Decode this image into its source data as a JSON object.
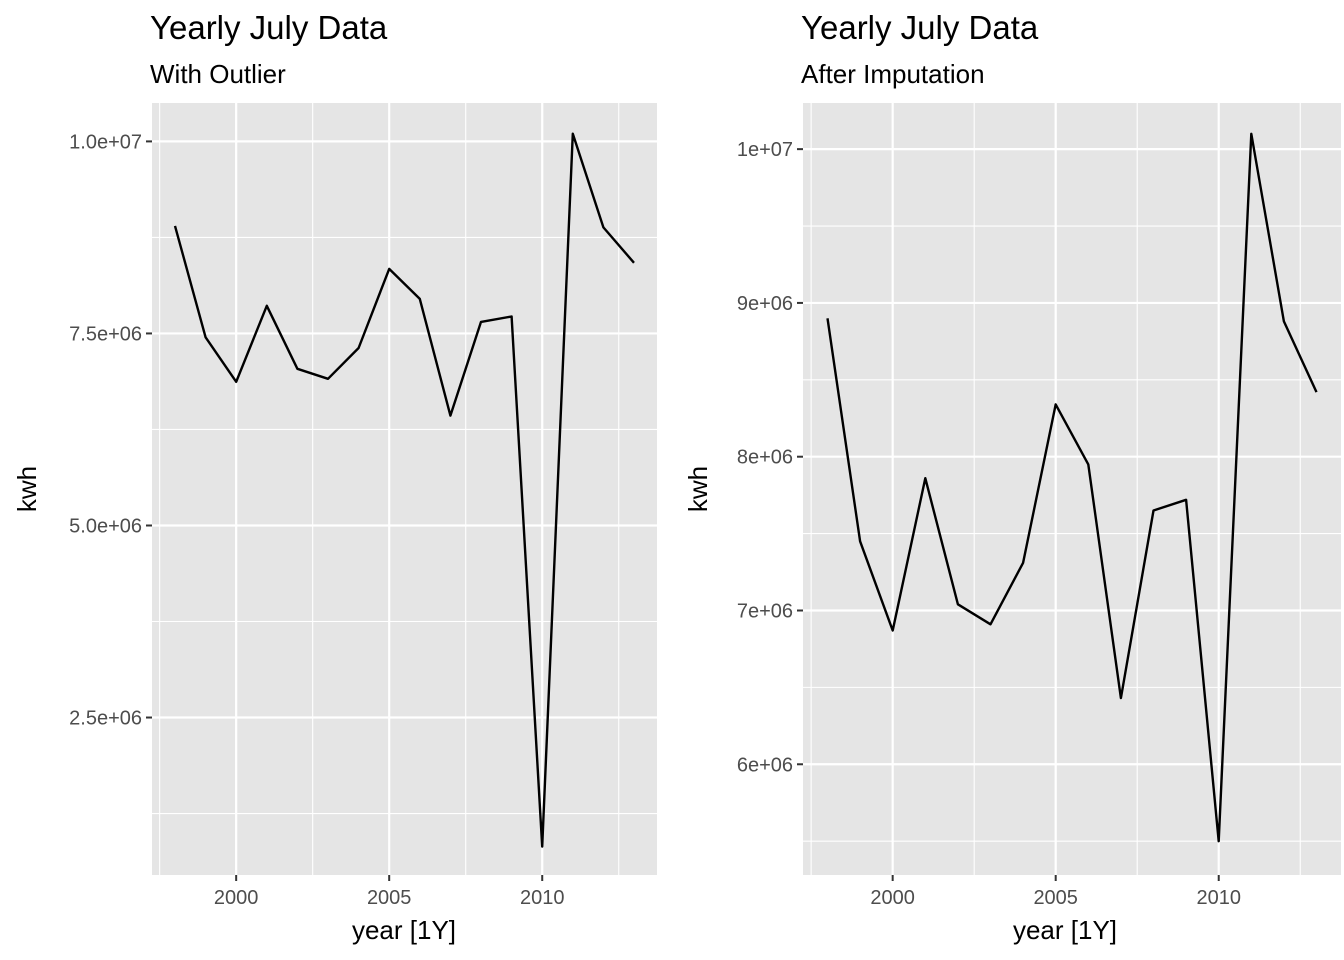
{
  "chart_data": [
    {
      "type": "line",
      "title": "Yearly July Data",
      "subtitle": "With Outlier",
      "xlabel": "year [1Y]",
      "ylabel": "kwh",
      "xlim": [
        1997.25,
        2013.75
      ],
      "ylim": [
        450000,
        10500000
      ],
      "x_ticks": [
        2000,
        2005,
        2010
      ],
      "x_tick_labels": [
        "2000",
        "2005",
        "2010"
      ],
      "y_ticks": [
        2500000,
        5000000,
        7500000,
        10000000
      ],
      "y_tick_labels": [
        "2.5e+06",
        "5.0e+06",
        "7.5e+06",
        "1.0e+07"
      ],
      "grid": true,
      "series": [
        {
          "x": [
            1998,
            1999,
            2000,
            2001,
            2002,
            2003,
            2004,
            2005,
            2006,
            2007,
            2008,
            2009,
            2010,
            2011,
            2012,
            2013
          ],
          "values": [
            8900000,
            7450000,
            6870000,
            7860000,
            7040000,
            6910000,
            7310000,
            8340000,
            7950000,
            6430000,
            7650000,
            7720000,
            820000,
            10100000,
            8880000,
            8420000
          ]
        }
      ]
    },
    {
      "type": "line",
      "title": "Yearly July Data",
      "subtitle": "After Imputation",
      "xlabel": "year [1Y]",
      "ylabel": "kwh",
      "xlim": [
        1997.25,
        2013.75
      ],
      "ylim": [
        5280000,
        10300000
      ],
      "x_ticks": [
        2000,
        2005,
        2010
      ],
      "x_tick_labels": [
        "2000",
        "2005",
        "2010"
      ],
      "y_ticks": [
        6000000,
        7000000,
        8000000,
        9000000,
        10000000
      ],
      "y_tick_labels": [
        "6e+06",
        "7e+06",
        "8e+06",
        "9e+06",
        "1e+07"
      ],
      "grid": true,
      "series": [
        {
          "x": [
            1998,
            1999,
            2000,
            2001,
            2002,
            2003,
            2004,
            2005,
            2006,
            2007,
            2008,
            2009,
            2010,
            2011,
            2012,
            2013
          ],
          "values": [
            8900000,
            7450000,
            6870000,
            7860000,
            7040000,
            6910000,
            7310000,
            8340000,
            7950000,
            6430000,
            7650000,
            7720000,
            5500000,
            10100000,
            8880000,
            8420000
          ]
        }
      ]
    }
  ],
  "colors": {
    "panel_background": "#e5e5e5",
    "grid": "#ffffff",
    "line": "#000000",
    "tick_text": "#4d4d4d",
    "tick_mark": "#333333"
  }
}
